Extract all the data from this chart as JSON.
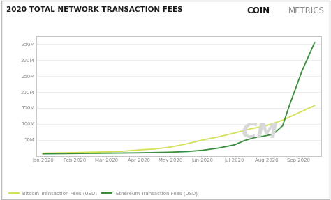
{
  "title": "2020 TOTAL NETWORK TRANSACTION FEES",
  "logo_coin": "COIN",
  "logo_metrics": "METRICS",
  "background_color": "#ffffff",
  "plot_bg_color": "#ffffff",
  "border_color": "#bbbbbb",
  "grid_color": "#e8e8e8",
  "title_color": "#1a1a1a",
  "coin_color": "#1a1a1a",
  "metrics_color": "#888888",
  "tick_color": "#888888",
  "watermark_color": "#d8d8d8",
  "ytick_values": [
    50000000,
    100000000,
    150000000,
    200000000,
    250000000,
    300000000,
    350000000
  ],
  "ylim": [
    0,
    375000000
  ],
  "xtick_labels": [
    "Jan 2020",
    "Feb 2020",
    "Mar 2020",
    "Apr 2020",
    "May 2020",
    "Jun 2020",
    "Jul 2020",
    "Aug 2020",
    "Sep 2020"
  ],
  "bitcoin_color": "#d4e157",
  "ethereum_color": "#388e3c",
  "legend_bitcoin": "Bitcoin Transaction Fees (USD)",
  "legend_ethereum": "Ethereum Transaction Fees (USD)",
  "bitcoin_x": [
    0,
    0.5,
    1,
    1.5,
    2,
    2.5,
    3,
    3.5,
    4,
    4.5,
    5,
    5.5,
    6,
    6.5,
    7,
    7.5,
    8,
    8.5
  ],
  "bitcoin_y": [
    9000000,
    10000000,
    11000000,
    12000000,
    13000000,
    15000000,
    19000000,
    22000000,
    28000000,
    38000000,
    50000000,
    60000000,
    72000000,
    85000000,
    95000000,
    112000000,
    135000000,
    158000000
  ],
  "ethereum_x": [
    0,
    0.5,
    1,
    1.5,
    2,
    2.5,
    3,
    3.5,
    4,
    4.5,
    5,
    5.5,
    6,
    6.3,
    6.6,
    6.9,
    7.2,
    7.5,
    7.7,
    7.9,
    8.1,
    8.3,
    8.5
  ],
  "ethereum_y": [
    7000000,
    7500000,
    8000000,
    8500000,
    9000000,
    9500000,
    10000000,
    11000000,
    12000000,
    14000000,
    18000000,
    25000000,
    35000000,
    48000000,
    57000000,
    62000000,
    68000000,
    95000000,
    155000000,
    210000000,
    265000000,
    310000000,
    355000000
  ]
}
